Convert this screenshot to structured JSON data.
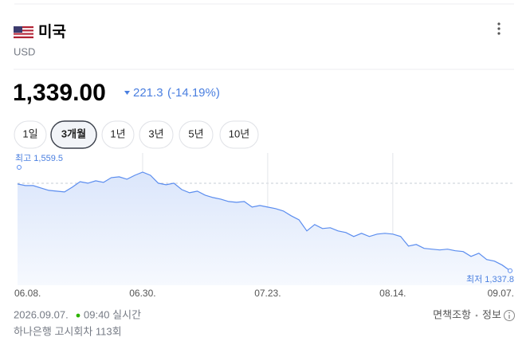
{
  "header": {
    "title": "미국",
    "currency": "USD"
  },
  "price": {
    "value": "1,339.00",
    "change": "221.3",
    "change_rate": "(-14.19%)"
  },
  "tabs": {
    "items": [
      "1일",
      "3개월",
      "1년",
      "3년",
      "5년",
      "10년"
    ],
    "selected": 1
  },
  "chart_data": {
    "type": "line",
    "color": "#5b8def",
    "categories": [
      "06.08.",
      null,
      null,
      null,
      null,
      null,
      null,
      null,
      null,
      null,
      null,
      null,
      null,
      null,
      null,
      null,
      "06.30.",
      null,
      null,
      null,
      null,
      null,
      null,
      null,
      null,
      null,
      null,
      null,
      null,
      null,
      null,
      null,
      "07.23.",
      null,
      null,
      null,
      null,
      null,
      null,
      null,
      null,
      null,
      null,
      null,
      null,
      null,
      null,
      null,
      "08.14.",
      null,
      null,
      null,
      null,
      null,
      null,
      null,
      null,
      null,
      null,
      null,
      null,
      null,
      null,
      "09.07."
    ],
    "values": [
      1532.7,
      1529.1,
      1529.1,
      1523.7,
      1518.4,
      1516.6,
      1514.8,
      1525.5,
      1538.0,
      1534.5,
      1539.8,
      1536.3,
      1547.0,
      1548.8,
      1543.4,
      1552.3,
      1559.5,
      1552.3,
      1534.5,
      1530.9,
      1534.5,
      1520.2,
      1513.0,
      1516.6,
      1507.6,
      1502.3,
      1498.7,
      1493.3,
      1491.6,
      1493.3,
      1480.8,
      1484.4,
      1480.8,
      1477.3,
      1471.9,
      1461.2,
      1452.2,
      1427.2,
      1441.5,
      1432.6,
      1434.3,
      1427.2,
      1423.6,
      1414.7,
      1421.8,
      1414.7,
      1420.0,
      1421.8,
      1420.0,
      1414.7,
      1393.2,
      1396.8,
      1387.9,
      1386.1,
      1384.3,
      1386.1,
      1382.5,
      1380.7,
      1369.9,
      1377.1,
      1362.8,
      1359.2,
      1350.3,
      1337.8
    ],
    "ylim": [
      1305,
      1606
    ],
    "annotations": {
      "high": "최고 1,559.5",
      "low": "최저 1,337.8"
    }
  },
  "footer": {
    "date": "2026.09.07.",
    "time": "09:40 실시간",
    "source": "하나은행 고시회차 113회",
    "disclaimer": "면책조항",
    "info": "정보"
  }
}
